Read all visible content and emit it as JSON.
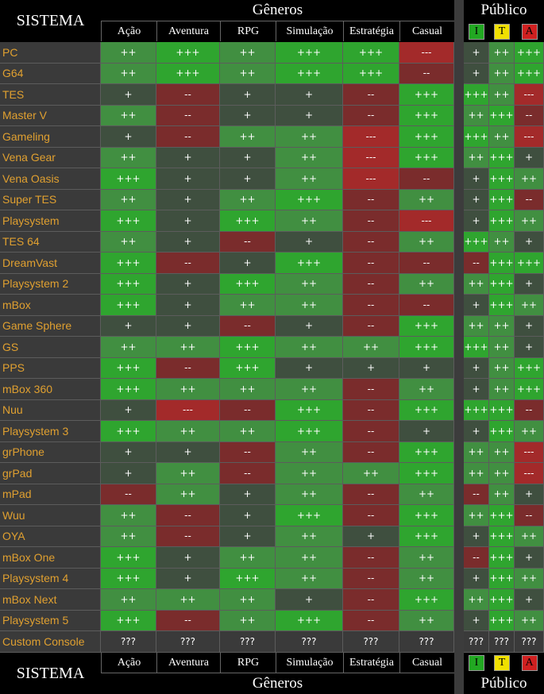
{
  "title": "SISTEMA",
  "genres_title": "Gêneros",
  "public_title": "Público",
  "genres": [
    "Ação",
    "Aventura",
    "RPG",
    "Simulação",
    "Estratégia",
    "Casual"
  ],
  "audience": [
    {
      "label": "I",
      "color": "#22a822"
    },
    {
      "label": "T",
      "color": "#f0e000"
    },
    {
      "label": "A",
      "color": "#d02020"
    }
  ],
  "colors": {
    "+++": "#2fa52f",
    "++": "#418f41",
    "+": "#3f4f3f",
    "--": "#7a2c2c",
    "---": "#a32a2a",
    "???": "#3a3a3a"
  },
  "rows": [
    {
      "name": "PC",
      "g": [
        "++",
        "+++",
        "++",
        "+++",
        "+++",
        "---"
      ],
      "p": [
        "+",
        "++",
        "+++"
      ]
    },
    {
      "name": "G64",
      "g": [
        "++",
        "+++",
        "++",
        "+++",
        "+++",
        "--"
      ],
      "p": [
        "+",
        "++",
        "+++"
      ]
    },
    {
      "name": "TES",
      "g": [
        "+",
        "--",
        "+",
        "+",
        "--",
        "+++"
      ],
      "p": [
        "+++",
        "++",
        "---"
      ]
    },
    {
      "name": "Master V",
      "g": [
        "++",
        "--",
        "+",
        "+",
        "--",
        "+++"
      ],
      "p": [
        "++",
        "+++",
        "--"
      ]
    },
    {
      "name": "Gameling",
      "g": [
        "+",
        "--",
        "++",
        "++",
        "---",
        "+++"
      ],
      "p": [
        "+++",
        "++",
        "---"
      ]
    },
    {
      "name": "Vena Gear",
      "g": [
        "++",
        "+",
        "+",
        "++",
        "---",
        "+++"
      ],
      "p": [
        "++",
        "+++",
        "+"
      ]
    },
    {
      "name": "Vena Oasis",
      "g": [
        "+++",
        "+",
        "+",
        "++",
        "---",
        "--"
      ],
      "p": [
        "+",
        "+++",
        "++"
      ]
    },
    {
      "name": "Super TES",
      "g": [
        "++",
        "+",
        "++",
        "+++",
        "--",
        "++"
      ],
      "p": [
        "+",
        "+++",
        "--"
      ]
    },
    {
      "name": "Playsystem",
      "g": [
        "+++",
        "+",
        "+++",
        "++",
        "--",
        "---"
      ],
      "p": [
        "+",
        "+++",
        "++"
      ]
    },
    {
      "name": "TES 64",
      "g": [
        "++",
        "+",
        "--",
        "+",
        "--",
        "++"
      ],
      "p": [
        "+++",
        "++",
        "+"
      ]
    },
    {
      "name": "DreamVast",
      "g": [
        "+++",
        "--",
        "+",
        "+++",
        "--",
        "--"
      ],
      "p": [
        "--",
        "+++",
        "+++"
      ]
    },
    {
      "name": "Playsystem 2",
      "g": [
        "+++",
        "+",
        "+++",
        "++",
        "--",
        "++"
      ],
      "p": [
        "++",
        "+++",
        "+"
      ]
    },
    {
      "name": "mBox",
      "g": [
        "+++",
        "+",
        "++",
        "++",
        "--",
        "--"
      ],
      "p": [
        "+",
        "+++",
        "++"
      ]
    },
    {
      "name": "Game Sphere",
      "g": [
        "+",
        "+",
        "--",
        "+",
        "--",
        "+++"
      ],
      "p": [
        "++",
        "++",
        "+"
      ]
    },
    {
      "name": "GS",
      "g": [
        "++",
        "++",
        "+++",
        "++",
        "++",
        "+++"
      ],
      "p": [
        "+++",
        "++",
        "+"
      ]
    },
    {
      "name": "PPS",
      "g": [
        "+++",
        "--",
        "+++",
        "+",
        "+",
        "+"
      ],
      "p": [
        "+",
        "++",
        "+++"
      ]
    },
    {
      "name": "mBox 360",
      "g": [
        "+++",
        "++",
        "++",
        "++",
        "--",
        "++"
      ],
      "p": [
        "+",
        "++",
        "+++"
      ]
    },
    {
      "name": "Nuu",
      "g": [
        "+",
        "---",
        "--",
        "+++",
        "--",
        "+++"
      ],
      "p": [
        "+++",
        "+++",
        "--"
      ]
    },
    {
      "name": "Playsystem 3",
      "g": [
        "+++",
        "++",
        "++",
        "+++",
        "--",
        "+"
      ],
      "p": [
        "+",
        "+++",
        "++"
      ]
    },
    {
      "name": "grPhone",
      "g": [
        "+",
        "+",
        "--",
        "++",
        "--",
        "+++"
      ],
      "p": [
        "++",
        "++",
        "---"
      ]
    },
    {
      "name": "grPad",
      "g": [
        "+",
        "++",
        "--",
        "++",
        "++",
        "+++"
      ],
      "p": [
        "++",
        "++",
        "---"
      ]
    },
    {
      "name": "mPad",
      "g": [
        "--",
        "++",
        "+",
        "++",
        "--",
        "++"
      ],
      "p": [
        "--",
        "++",
        "+"
      ]
    },
    {
      "name": "Wuu",
      "g": [
        "++",
        "--",
        "+",
        "+++",
        "--",
        "+++"
      ],
      "p": [
        "++",
        "+++",
        "--"
      ]
    },
    {
      "name": "OYA",
      "g": [
        "++",
        "--",
        "+",
        "++",
        "+",
        "+++"
      ],
      "p": [
        "+",
        "+++",
        "++"
      ]
    },
    {
      "name": "mBox One",
      "g": [
        "+++",
        "+",
        "++",
        "++",
        "--",
        "++"
      ],
      "p": [
        "--",
        "+++",
        "+"
      ]
    },
    {
      "name": "Playsystem 4",
      "g": [
        "+++",
        "+",
        "+++",
        "++",
        "--",
        "++"
      ],
      "p": [
        "+",
        "+++",
        "++"
      ]
    },
    {
      "name": "mBox Next",
      "g": [
        "++",
        "++",
        "++",
        "+",
        "--",
        "+++"
      ],
      "p": [
        "++",
        "+++",
        "+"
      ]
    },
    {
      "name": "Playsystem 5",
      "g": [
        "+++",
        "--",
        "++",
        "+++",
        "--",
        "++"
      ],
      "p": [
        "+",
        "+++",
        "++"
      ]
    },
    {
      "name": "Custom Console",
      "g": [
        "???",
        "???",
        "???",
        "???",
        "???",
        "???"
      ],
      "p": [
        "???",
        "???",
        "???"
      ]
    }
  ]
}
